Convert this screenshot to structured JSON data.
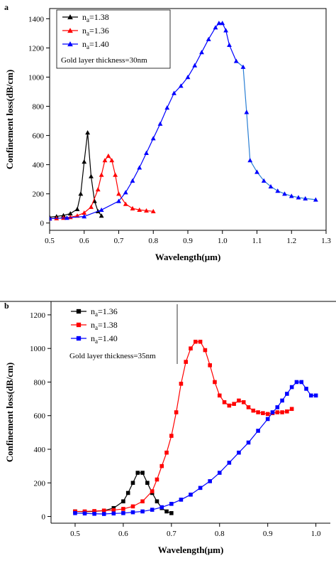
{
  "chart_data": [
    {
      "panel_label": "a",
      "type": "line",
      "xlabel": "Wavelength(μm)",
      "ylabel": "Confinement loss(dB/cm)",
      "xlim": [
        0.5,
        1.3
      ],
      "ylim": [
        -50,
        1470
      ],
      "xticks": [
        0.5,
        0.6,
        0.7,
        0.8,
        0.9,
        1.0,
        1.1,
        1.2,
        1.3
      ],
      "xtick_labels": [
        "0.5",
        "0.6",
        "0.7",
        "0.8",
        "0.9",
        "1.0",
        "1.1",
        "1.2",
        "1.3"
      ],
      "yticks": [
        0,
        200,
        400,
        600,
        800,
        1000,
        1200,
        1400
      ],
      "ytick_labels": [
        "0",
        "200",
        "400",
        "600",
        "800",
        "1000",
        "1200",
        "1400"
      ],
      "legend_position": "top-left",
      "annotation": "Gold layer thickness=30nm",
      "series": [
        {
          "name": "na=1.38",
          "label_main": "n",
          "label_sub": "a",
          "label_rest": "=1.38",
          "color": "#000000",
          "marker": "triangle",
          "x": [
            0.5,
            0.52,
            0.54,
            0.56,
            0.58,
            0.59,
            0.6,
            0.61,
            0.62,
            0.63,
            0.64,
            0.65
          ],
          "y": [
            40,
            45,
            52,
            65,
            95,
            200,
            420,
            620,
            320,
            150,
            80,
            50
          ]
        },
        {
          "name": "na=1.36",
          "label_main": "n",
          "label_sub": "a",
          "label_rest": "=1.36",
          "color": "#ff0000",
          "marker": "triangle",
          "x": [
            0.5,
            0.52,
            0.54,
            0.56,
            0.58,
            0.6,
            0.62,
            0.64,
            0.65,
            0.66,
            0.67,
            0.68,
            0.69,
            0.7,
            0.72,
            0.74,
            0.76,
            0.78,
            0.8
          ],
          "y": [
            30,
            32,
            35,
            40,
            50,
            70,
            110,
            230,
            330,
            430,
            460,
            430,
            330,
            200,
            130,
            100,
            90,
            85,
            80
          ]
        },
        {
          "name": "na=1.40",
          "label_main": "n",
          "label_sub": "a",
          "label_rest": "=1.40",
          "color": "#0000ff",
          "color_tail": "#2a7fd4",
          "marker": "triangle",
          "x": [
            0.5,
            0.55,
            0.6,
            0.65,
            0.7,
            0.72,
            0.74,
            0.76,
            0.78,
            0.8,
            0.82,
            0.84,
            0.86,
            0.88,
            0.9,
            0.92,
            0.94,
            0.96,
            0.98,
            0.99,
            1.0,
            1.01,
            1.02,
            1.04,
            1.06,
            1.07,
            1.08,
            1.1,
            1.12,
            1.14,
            1.16,
            1.18,
            1.2,
            1.22,
            1.24,
            1.27
          ],
          "y": [
            30,
            35,
            45,
            90,
            150,
            210,
            290,
            380,
            480,
            580,
            680,
            790,
            890,
            940,
            1000,
            1080,
            1170,
            1260,
            1340,
            1370,
            1370,
            1320,
            1220,
            1110,
            1070,
            760,
            430,
            350,
            290,
            250,
            220,
            200,
            185,
            175,
            168,
            160
          ]
        }
      ]
    },
    {
      "panel_label": "b",
      "type": "line",
      "xlabel": "Wavelength(μm)",
      "ylabel": "Confinement loss(dB/cm)",
      "xlim": [
        0.45,
        1.03
      ],
      "ylim": [
        -40,
        1280
      ],
      "xticks": [
        0.5,
        0.6,
        0.7,
        0.8,
        0.9,
        1.0
      ],
      "xtick_labels": [
        "0.5",
        "0.6",
        "0.7",
        "0.8",
        "0.9",
        "1.0"
      ],
      "yticks": [
        0,
        200,
        400,
        600,
        800,
        1000,
        1200
      ],
      "ytick_labels": [
        "0",
        "200",
        "400",
        "600",
        "800",
        "1000",
        "1200"
      ],
      "legend_position": "top-left",
      "annotation": "Gold layer thickness=35nm",
      "series": [
        {
          "name": "na=1.36",
          "label_main": "n",
          "label_sub": "a",
          "label_rest": "=1.36",
          "color": "#000000",
          "marker": "square",
          "x": [
            0.5,
            0.52,
            0.54,
            0.56,
            0.58,
            0.6,
            0.61,
            0.62,
            0.63,
            0.64,
            0.65,
            0.66,
            0.67,
            0.68,
            0.69,
            0.7
          ],
          "y": [
            30,
            28,
            30,
            35,
            50,
            90,
            140,
            200,
            260,
            260,
            200,
            140,
            90,
            50,
            30,
            20
          ]
        },
        {
          "name": "na=1.38",
          "label_main": "n",
          "label_sub": "a",
          "label_rest": "=1.38",
          "color": "#ff0000",
          "marker": "square",
          "x": [
            0.5,
            0.52,
            0.54,
            0.56,
            0.58,
            0.6,
            0.62,
            0.64,
            0.66,
            0.67,
            0.68,
            0.69,
            0.7,
            0.71,
            0.72,
            0.73,
            0.74,
            0.75,
            0.76,
            0.77,
            0.78,
            0.79,
            0.8,
            0.81,
            0.82,
            0.83,
            0.84,
            0.85,
            0.86,
            0.87,
            0.88,
            0.89,
            0.9,
            0.91,
            0.92,
            0.93,
            0.94,
            0.95
          ],
          "y": [
            30,
            30,
            32,
            35,
            38,
            45,
            60,
            90,
            150,
            220,
            300,
            380,
            480,
            620,
            790,
            920,
            1000,
            1040,
            1040,
            990,
            900,
            800,
            720,
            680,
            660,
            670,
            690,
            680,
            650,
            630,
            620,
            615,
            610,
            615,
            620,
            620,
            625,
            640
          ]
        },
        {
          "name": "na=1.40",
          "label_main": "n",
          "label_sub": "a",
          "label_rest": "=1.40",
          "color": "#0000ff",
          "marker": "square",
          "x": [
            0.5,
            0.52,
            0.54,
            0.56,
            0.58,
            0.6,
            0.62,
            0.64,
            0.66,
            0.68,
            0.7,
            0.72,
            0.74,
            0.76,
            0.78,
            0.8,
            0.82,
            0.84,
            0.86,
            0.88,
            0.9,
            0.91,
            0.92,
            0.93,
            0.94,
            0.95,
            0.96,
            0.97,
            0.98,
            0.99,
            1.0
          ],
          "y": [
            20,
            18,
            16,
            15,
            18,
            20,
            25,
            30,
            40,
            55,
            75,
            100,
            130,
            170,
            210,
            260,
            320,
            380,
            440,
            510,
            580,
            620,
            650,
            690,
            730,
            770,
            800,
            800,
            760,
            720,
            720
          ]
        }
      ]
    }
  ]
}
